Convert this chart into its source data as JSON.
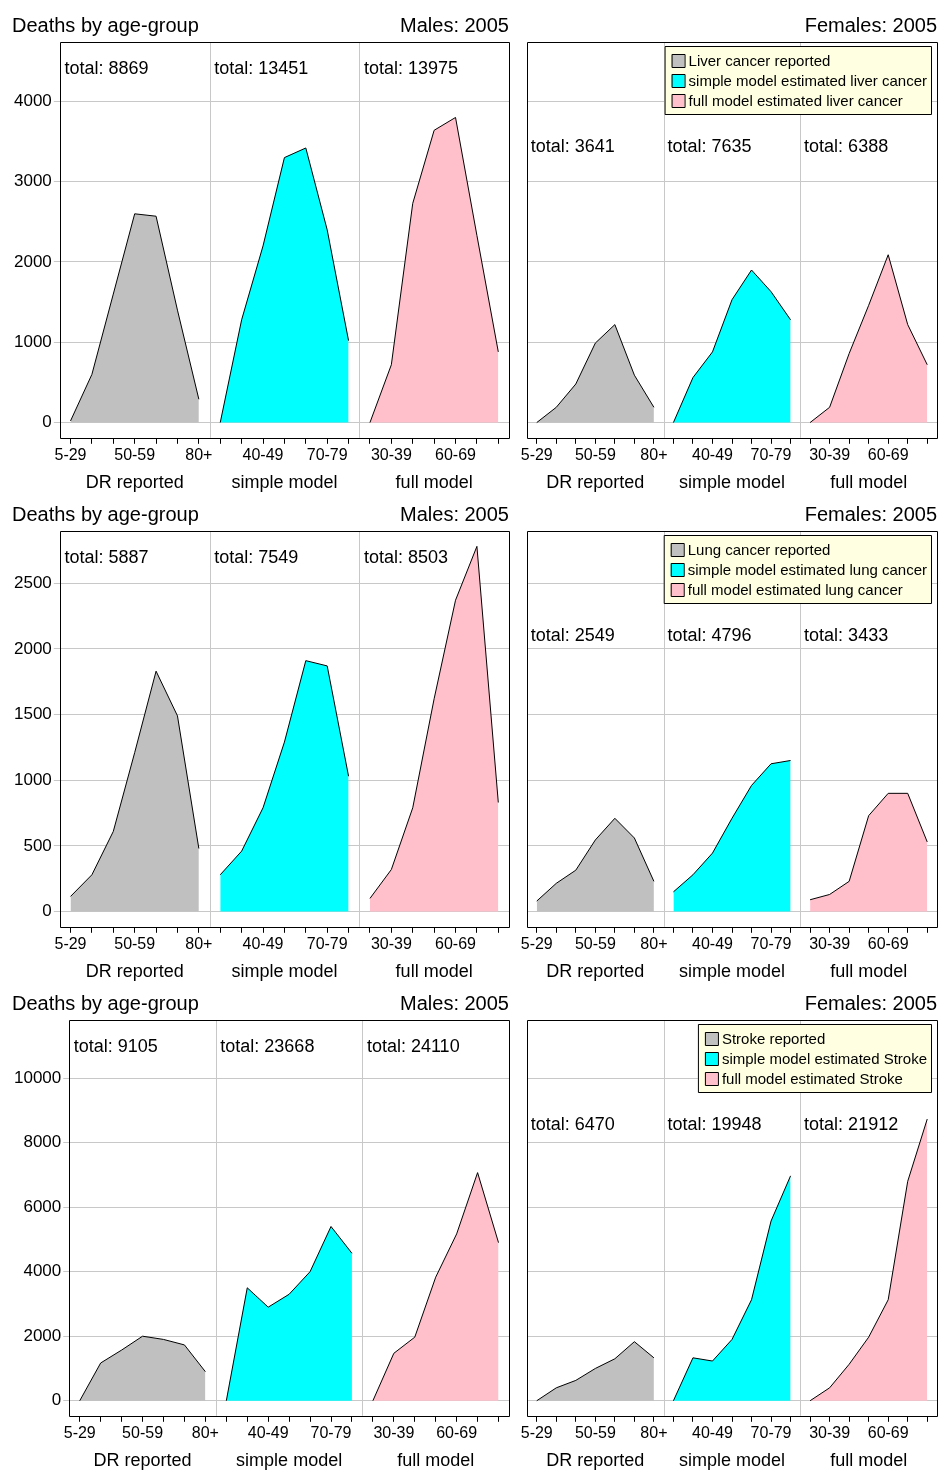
{
  "chart_data": [
    {
      "type": "area",
      "title": "Males: 2005",
      "ylabel": "Deaths by age-group",
      "categories": [
        "5-29",
        null,
        null,
        "50-59",
        null,
        null,
        "80+",
        null,
        null,
        "40-49",
        null,
        null,
        "70-79",
        null,
        null,
        "30-39",
        null,
        null,
        "60-69",
        null,
        null
      ],
      "ylim": [
        -190,
        4740
      ],
      "yticks": [
        0,
        1000,
        2000,
        3000,
        4000
      ],
      "grid": "y",
      "annotations": [
        "total: 8869",
        "total: 13451",
        "total: 13975",
        "DR reported",
        "simple model",
        "full model"
      ],
      "series": [
        {
          "color": "#c0c0c0",
          "values": [
            20,
            600,
            1600,
            2600,
            2570,
            1400,
            290,
            null,
            null,
            null,
            null,
            null,
            null,
            null,
            null,
            null,
            null,
            null,
            null,
            null,
            null
          ]
        },
        {
          "color": "#00ffff",
          "values": [
            null,
            null,
            null,
            null,
            null,
            null,
            null,
            0,
            1280,
            2200,
            3300,
            3420,
            2400,
            1020,
            null,
            null,
            null,
            null,
            null,
            null,
            null
          ]
        },
        {
          "color": "#ffc0cb",
          "values": [
            null,
            null,
            null,
            null,
            null,
            null,
            null,
            null,
            null,
            null,
            null,
            null,
            null,
            null,
            0,
            720,
            2730,
            3640,
            3800,
            2330,
            880
          ]
        }
      ]
    },
    {
      "type": "area",
      "title": "Females: 2005",
      "categories": [
        "5-29",
        null,
        null,
        "50-59",
        null,
        null,
        "80+",
        null,
        null,
        "40-49",
        null,
        null,
        "70-79",
        null,
        null,
        "30-39",
        null,
        null,
        "60-69",
        null,
        null
      ],
      "ylim": [
        -190,
        4740
      ],
      "yticks": [
        0,
        1000,
        2000,
        3000,
        4000
      ],
      "grid": "y",
      "tick_labels": "x",
      "legend": "top right",
      "annotations": [
        "total: 3641",
        "total: 7635",
        "total: 6388",
        "DR reported",
        "simple model",
        "full model"
      ],
      "series": [
        {
          "name": "Liver cancer reported",
          "color": "#c0c0c0",
          "values": [
            0,
            190,
            480,
            990,
            1220,
            590,
            190,
            null,
            null,
            null,
            null,
            null,
            null,
            null,
            null,
            null,
            null,
            null,
            null,
            null,
            null
          ]
        },
        {
          "name": "simple model estimated liver cancer",
          "color": "#00ffff",
          "values": [
            null,
            null,
            null,
            null,
            null,
            null,
            null,
            0,
            560,
            880,
            1530,
            1900,
            1630,
            1280,
            null,
            null,
            null,
            null,
            null,
            null,
            null
          ]
        },
        {
          "name": "full model estimated liver cancer",
          "color": "#ffc0cb",
          "values": [
            null,
            null,
            null,
            null,
            null,
            null,
            null,
            null,
            null,
            null,
            null,
            null,
            null,
            null,
            0,
            190,
            860,
            1460,
            2090,
            1220,
            720
          ]
        }
      ]
    },
    {
      "type": "area",
      "title": "Males: 2005",
      "ylabel": "Deaths by age-group",
      "categories": [
        "5-29",
        null,
        null,
        "50-59",
        null,
        null,
        "80+",
        null,
        null,
        "40-49",
        null,
        null,
        "70-79",
        null,
        null,
        "30-39",
        null,
        null,
        "60-69",
        null,
        null
      ],
      "ylim": [
        -116,
        2897
      ],
      "yticks": [
        0,
        500,
        1000,
        1500,
        2000,
        2500
      ],
      "grid": "y",
      "annotations": [
        "total: 5887",
        "total: 7549",
        "total: 8503",
        "DR reported",
        "simple model",
        "full model"
      ],
      "series": [
        {
          "color": "#c0c0c0",
          "values": [
            115,
            280,
            610,
            1210,
            1830,
            1490,
            480,
            null,
            null,
            null,
            null,
            null,
            null,
            null,
            null,
            null,
            null,
            null,
            null,
            null,
            null
          ]
        },
        {
          "color": "#00ffff",
          "values": [
            null,
            null,
            null,
            null,
            null,
            null,
            null,
            280,
            460,
            790,
            1290,
            1910,
            1870,
            1030,
            null,
            null,
            null,
            null,
            null,
            null,
            null
          ]
        },
        {
          "color": "#ffc0cb",
          "values": [
            null,
            null,
            null,
            null,
            null,
            null,
            null,
            null,
            null,
            null,
            null,
            null,
            null,
            null,
            100,
            320,
            790,
            1620,
            2370,
            2780,
            830
          ]
        }
      ]
    },
    {
      "type": "area",
      "title": "Females: 2005",
      "categories": [
        "5-29",
        null,
        null,
        "50-59",
        null,
        null,
        "80+",
        null,
        null,
        "40-49",
        null,
        null,
        "70-79",
        null,
        null,
        "30-39",
        null,
        null,
        "60-69",
        null,
        null
      ],
      "ylim": [
        -116,
        2897
      ],
      "yticks": [
        0,
        500,
        1000,
        1500,
        2000,
        2500
      ],
      "grid": "y",
      "tick_labels": "x",
      "legend": "top right",
      "annotations": [
        "total: 2549",
        "total: 4796",
        "total: 3433",
        "DR reported",
        "simple model",
        "full model"
      ],
      "series": [
        {
          "name": "Lung cancer reported",
          "color": "#c0c0c0",
          "values": [
            80,
            215,
            315,
            545,
            710,
            560,
            230,
            null,
            null,
            null,
            null,
            null,
            null,
            null,
            null,
            null,
            null,
            null,
            null,
            null,
            null
          ]
        },
        {
          "name": "simple model estimated lung cancer",
          "color": "#00ffff",
          "values": [
            null,
            null,
            null,
            null,
            null,
            null,
            null,
            150,
            280,
            445,
            710,
            960,
            1125,
            1150,
            null,
            null,
            null,
            null,
            null,
            null,
            null
          ]
        },
        {
          "name": "full model estimated lung cancer",
          "color": "#ffc0cb",
          "values": [
            null,
            null,
            null,
            null,
            null,
            null,
            null,
            null,
            null,
            null,
            null,
            null,
            null,
            null,
            90,
            130,
            230,
            730,
            900,
            900,
            530
          ]
        }
      ]
    },
    {
      "type": "area",
      "title": "Males: 2005",
      "ylabel": "Deaths by age-group",
      "categories": [
        "5-29",
        null,
        null,
        "50-59",
        null,
        null,
        "80+",
        null,
        null,
        "40-49",
        null,
        null,
        "70-79",
        null,
        null,
        "30-39",
        null,
        null,
        "60-69",
        null,
        null
      ],
      "ylim": [
        -467,
        11800
      ],
      "yticks": [
        0,
        2000,
        4000,
        6000,
        8000,
        10000
      ],
      "grid": "y",
      "annotations": [
        "total: 9105",
        "total: 23668",
        "total: 24110",
        "DR reported",
        "simple model",
        "full model"
      ],
      "series": [
        {
          "color": "#c0c0c0",
          "values": [
            0,
            1170,
            1570,
            2000,
            1900,
            1730,
            900,
            null,
            null,
            null,
            null,
            null,
            null,
            null,
            null,
            null,
            null,
            null,
            null,
            null,
            null
          ]
        },
        {
          "color": "#00ffff",
          "values": [
            null,
            null,
            null,
            null,
            null,
            null,
            null,
            0,
            3500,
            2900,
            3300,
            4000,
            5400,
            4570,
            null,
            null,
            null,
            null,
            null,
            null,
            null
          ]
        },
        {
          "color": "#ffc0cb",
          "values": [
            null,
            null,
            null,
            null,
            null,
            null,
            null,
            null,
            null,
            null,
            null,
            null,
            null,
            null,
            0,
            1470,
            1970,
            3830,
            5170,
            7070,
            4900
          ]
        }
      ]
    },
    {
      "type": "area",
      "title": "Females: 2005",
      "categories": [
        "5-29",
        null,
        null,
        "50-59",
        null,
        null,
        "80+",
        null,
        null,
        "40-49",
        null,
        null,
        "70-79",
        null,
        null,
        "30-39",
        null,
        null,
        "60-69",
        null,
        null
      ],
      "ylim": [
        -467,
        11800
      ],
      "yticks": [
        0,
        2000,
        4000,
        6000,
        8000,
        10000
      ],
      "grid": "y",
      "tick_labels": "x",
      "legend": "top right",
      "annotations": [
        "total: 6470",
        "total: 19948",
        "total: 21912",
        "DR reported",
        "simple model",
        "full model"
      ],
      "series": [
        {
          "name": "Stroke reported",
          "color": "#c0c0c0",
          "values": [
            0,
            400,
            630,
            1000,
            1300,
            1830,
            1330,
            null,
            null,
            null,
            null,
            null,
            null,
            null,
            null,
            null,
            null,
            null,
            null,
            null,
            null
          ]
        },
        {
          "name": "simple model estimated Stroke",
          "color": "#00ffff",
          "values": [
            null,
            null,
            null,
            null,
            null,
            null,
            null,
            0,
            1330,
            1230,
            1900,
            3130,
            5570,
            6970,
            null,
            null,
            null,
            null,
            null,
            null,
            null
          ]
        },
        {
          "name": "full model estimated Stroke",
          "color": "#ffc0cb",
          "values": [
            null,
            null,
            null,
            null,
            null,
            null,
            null,
            null,
            null,
            null,
            null,
            null,
            null,
            null,
            0,
            400,
            1130,
            1970,
            3130,
            6800,
            8730
          ]
        }
      ]
    }
  ]
}
